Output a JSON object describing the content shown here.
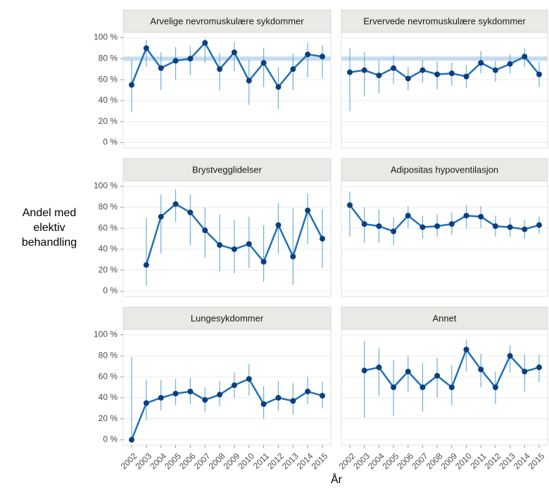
{
  "y_label": "Andel med elektiv behandling",
  "x_label": "År",
  "chart_data": [
    {
      "type": "line",
      "title": "Arvelige nevromuskulære sykdommer",
      "categories": [
        "2002",
        "2003",
        "2004",
        "2005",
        "2006",
        "2007",
        "2008",
        "2009",
        "2010",
        "2011",
        "2012",
        "2013",
        "2014",
        "2015"
      ],
      "values": [
        55,
        90,
        71,
        78,
        80,
        95,
        70,
        86,
        59,
        76,
        53,
        70,
        84,
        82
      ],
      "lower": [
        29,
        72,
        50,
        60,
        64,
        76,
        50,
        68,
        36,
        53,
        32,
        50,
        62,
        61
      ],
      "upper": [
        79,
        98,
        86,
        91,
        92,
        99,
        85,
        96,
        79,
        90,
        72,
        85,
        95,
        93
      ],
      "target": 80,
      "ylim": [
        -5,
        105
      ],
      "yticks": [
        {
          "value": 0,
          "label": "0 %"
        },
        {
          "value": 20,
          "label": "20 %"
        },
        {
          "value": 40,
          "label": "40 %"
        },
        {
          "value": 60,
          "label": "60 %"
        },
        {
          "value": 80,
          "label": "80 %"
        },
        {
          "value": 100,
          "label": "100 %"
        }
      ]
    },
    {
      "type": "line",
      "title": "Ervervede nevromuskulære sykdommer",
      "categories": [
        "2002",
        "2003",
        "2004",
        "2005",
        "2006",
        "2007",
        "2008",
        "2009",
        "2010",
        "2011",
        "2012",
        "2013",
        "2014",
        "2015"
      ],
      "values": [
        67,
        69,
        64,
        71,
        61,
        69,
        65,
        66,
        63,
        76,
        69,
        75,
        82,
        65
      ],
      "lower": [
        30,
        44,
        47,
        56,
        50,
        57,
        51,
        54,
        52,
        66,
        58,
        66,
        72,
        53
      ],
      "upper": [
        90,
        86,
        78,
        83,
        72,
        79,
        77,
        76,
        74,
        87,
        78,
        84,
        90,
        77
      ],
      "target": 80,
      "ylim": [
        -5,
        105
      ],
      "yticks": [
        {
          "value": 0,
          "label": "0 %"
        },
        {
          "value": 20,
          "label": "20 %"
        },
        {
          "value": 40,
          "label": "40 %"
        },
        {
          "value": 60,
          "label": "60 %"
        },
        {
          "value": 80,
          "label": "80 %"
        },
        {
          "value": 100,
          "label": "100 %"
        }
      ]
    },
    {
      "type": "line",
      "title": "Brystvegglidelser",
      "categories": [
        "2002",
        "2003",
        "2004",
        "2005",
        "2006",
        "2007",
        "2008",
        "2009",
        "2010",
        "2011",
        "2012",
        "2013",
        "2014",
        "2015"
      ],
      "values": [
        null,
        25,
        71,
        83,
        75,
        58,
        44,
        40,
        45,
        28,
        63,
        33,
        77,
        50
      ],
      "lower": [
        null,
        5,
        36,
        66,
        44,
        32,
        19,
        17,
        22,
        9,
        36,
        6,
        45,
        22
      ],
      "upper": [
        null,
        70,
        92,
        97,
        92,
        80,
        73,
        68,
        71,
        63,
        84,
        79,
        93,
        78
      ],
      "ylim": [
        -5,
        105
      ],
      "yticks": [
        {
          "value": 0,
          "label": "0 %"
        },
        {
          "value": 20,
          "label": "20 %"
        },
        {
          "value": 40,
          "label": "40 %"
        },
        {
          "value": 60,
          "label": "60 %"
        },
        {
          "value": 80,
          "label": "80 %"
        },
        {
          "value": 100,
          "label": "100 %"
        }
      ]
    },
    {
      "type": "line",
      "title": "Adipositas hypoventilasjon",
      "categories": [
        "2002",
        "2003",
        "2004",
        "2005",
        "2006",
        "2007",
        "2008",
        "2009",
        "2010",
        "2011",
        "2012",
        "2013",
        "2014",
        "2015"
      ],
      "values": [
        82,
        64,
        62,
        57,
        72,
        61,
        62,
        64,
        72,
        71,
        62,
        61,
        59,
        63
      ],
      "lower": [
        52,
        46,
        46,
        44,
        60,
        50,
        52,
        54,
        60,
        60,
        52,
        52,
        50,
        55
      ],
      "upper": [
        95,
        80,
        78,
        70,
        81,
        72,
        73,
        75,
        82,
        81,
        72,
        70,
        68,
        71
      ],
      "ylim": [
        -5,
        105
      ],
      "yticks": [
        {
          "value": 0,
          "label": "0 %"
        },
        {
          "value": 20,
          "label": "20 %"
        },
        {
          "value": 40,
          "label": "40 %"
        },
        {
          "value": 60,
          "label": "60 %"
        },
        {
          "value": 80,
          "label": "80 %"
        },
        {
          "value": 100,
          "label": "100 %"
        }
      ]
    },
    {
      "type": "line",
      "title": "Lungesykdommer",
      "categories": [
        "2002",
        "2003",
        "2004",
        "2005",
        "2006",
        "2007",
        "2008",
        "2009",
        "2010",
        "2011",
        "2012",
        "2013",
        "2014",
        "2015"
      ],
      "values": [
        0,
        35,
        40,
        44,
        46,
        38,
        43,
        52,
        58,
        34,
        40,
        37,
        46,
        42
      ],
      "lower": [
        0,
        19,
        28,
        33,
        34,
        27,
        32,
        40,
        42,
        20,
        28,
        24,
        34,
        30
      ],
      "upper": [
        79,
        57,
        57,
        58,
        59,
        50,
        56,
        64,
        72,
        51,
        56,
        54,
        60,
        55
      ],
      "ylim": [
        -5,
        105
      ],
      "yticks": [
        {
          "value": 0,
          "label": "0 %"
        },
        {
          "value": 20,
          "label": "20 %"
        },
        {
          "value": 40,
          "label": "40 %"
        },
        {
          "value": 60,
          "label": "60 %"
        },
        {
          "value": 80,
          "label": "80 %"
        },
        {
          "value": 100,
          "label": "100 %"
        }
      ]
    },
    {
      "type": "line",
      "title": "Annet",
      "categories": [
        "2002",
        "2003",
        "2004",
        "2005",
        "2006",
        "2007",
        "2008",
        "2009",
        "2010",
        "2011",
        "2012",
        "2013",
        "2014",
        "2015"
      ],
      "values": [
        null,
        66,
        69,
        50,
        65,
        50,
        61,
        50,
        86,
        67,
        50,
        80,
        65,
        69
      ],
      "lower": [
        null,
        21,
        42,
        23,
        46,
        27,
        40,
        33,
        65,
        50,
        34,
        64,
        46,
        55
      ],
      "upper": [
        null,
        94,
        87,
        76,
        80,
        73,
        78,
        71,
        95,
        82,
        65,
        90,
        81,
        81
      ],
      "ylim": [
        -5,
        105
      ],
      "yticks": [
        {
          "value": 0,
          "label": "0 %"
        },
        {
          "value": 20,
          "label": "20 %"
        },
        {
          "value": 40,
          "label": "40 %"
        },
        {
          "value": 60,
          "label": "60 %"
        },
        {
          "value": 80,
          "label": "80 %"
        },
        {
          "value": 100,
          "label": "100 %"
        }
      ]
    }
  ]
}
